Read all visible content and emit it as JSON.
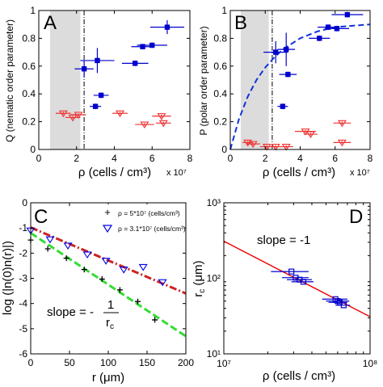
{
  "chart_data": [
    {
      "panel": "A",
      "type": "scatter",
      "xlabel": "ρ (cells / cm³)",
      "x_multiplier": "x 10⁷",
      "ylabel": "Q (nematic order parameter)",
      "xlim": [
        0,
        8
      ],
      "ylim": [
        0,
        1
      ],
      "xticks": [
        0,
        2,
        4,
        6,
        8
      ],
      "yticks": [
        0,
        0.2,
        0.4,
        0.6,
        0.8,
        1
      ],
      "shaded_band_x": [
        0.6,
        2.2
      ],
      "vertical_line_x": 2.4,
      "series": [
        {
          "color": "#0000cc",
          "marker": "square-filled",
          "points": [
            {
              "x": 2.4,
              "y": 0.58,
              "xerr": 0.5,
              "yerr": 0.06
            },
            {
              "x": 3.1,
              "y": 0.64,
              "xerr": 0.9,
              "yerr": 0.09
            },
            {
              "x": 3.3,
              "y": 0.39,
              "xerr": 0.4,
              "yerr": 0.02
            },
            {
              "x": 3.0,
              "y": 0.31,
              "xerr": 0.3,
              "yerr": 0.02
            },
            {
              "x": 5.1,
              "y": 0.62,
              "xerr": 0.7,
              "yerr": 0.02
            },
            {
              "x": 5.5,
              "y": 0.74,
              "xerr": 0.6,
              "yerr": 0.02
            },
            {
              "x": 6.0,
              "y": 0.75,
              "xerr": 0.8,
              "yerr": 0.02
            },
            {
              "x": 6.8,
              "y": 0.88,
              "xerr": 0.9,
              "yerr": 0.05
            }
          ]
        },
        {
          "color": "#ee3333",
          "marker": "triangle-open",
          "points": [
            {
              "x": 1.3,
              "y": 0.26,
              "xerr": 0.4,
              "yerr": 0.01
            },
            {
              "x": 1.8,
              "y": 0.23,
              "xerr": 0.4,
              "yerr": 0.01
            },
            {
              "x": 2.1,
              "y": 0.25,
              "xerr": 0.4,
              "yerr": 0.01
            },
            {
              "x": 4.3,
              "y": 0.26,
              "xerr": 0.4,
              "yerr": 0.01
            },
            {
              "x": 5.6,
              "y": 0.18,
              "xerr": 0.5,
              "yerr": 0.01
            },
            {
              "x": 6.5,
              "y": 0.24,
              "xerr": 0.5,
              "yerr": 0.01
            },
            {
              "x": 6.6,
              "y": 0.19,
              "xerr": 0.4,
              "yerr": 0.01
            }
          ]
        }
      ]
    },
    {
      "panel": "B",
      "type": "scatter",
      "xlabel": "ρ (cells / cm³)",
      "x_multiplier": "x 10⁷",
      "ylabel": "P (polar order parameter)",
      "xlim": [
        0,
        8
      ],
      "ylim": [
        0,
        1
      ],
      "xticks": [
        0,
        2,
        4,
        6,
        8
      ],
      "yticks": [
        0,
        0.2,
        0.4,
        0.6,
        0.8,
        1
      ],
      "shaded_band_x": [
        0.6,
        2.2
      ],
      "vertical_line_x": 2.4,
      "fit_curve": {
        "style": "dashed",
        "color": "#1133dd",
        "points": [
          [
            0,
            0
          ],
          [
            0.5,
            0.22
          ],
          [
            1,
            0.38
          ],
          [
            1.5,
            0.5
          ],
          [
            2,
            0.59
          ],
          [
            2.5,
            0.66
          ],
          [
            3,
            0.72
          ],
          [
            4,
            0.8
          ],
          [
            5,
            0.85
          ],
          [
            6,
            0.88
          ],
          [
            7,
            0.89
          ],
          [
            8,
            0.9
          ]
        ]
      },
      "series": [
        {
          "color": "#0000cc",
          "marker": "square-filled",
          "points": [
            {
              "x": 2.6,
              "y": 0.7,
              "xerr": 0.7,
              "yerr": 0.08
            },
            {
              "x": 3.2,
              "y": 0.72,
              "xerr": 0.5,
              "yerr": 0.12
            },
            {
              "x": 3.3,
              "y": 0.54,
              "xerr": 0.5,
              "yerr": 0.02
            },
            {
              "x": 3.0,
              "y": 0.31,
              "xerr": 0.3,
              "yerr": 0.02
            },
            {
              "x": 5.1,
              "y": 0.8,
              "xerr": 0.6,
              "yerr": 0.02
            },
            {
              "x": 5.6,
              "y": 0.88,
              "xerr": 0.6,
              "yerr": 0.02
            },
            {
              "x": 6.1,
              "y": 0.87,
              "xerr": 0.7,
              "yerr": 0.02
            },
            {
              "x": 6.7,
              "y": 0.97,
              "xerr": 0.9,
              "yerr": 0.02
            }
          ]
        },
        {
          "color": "#ee3333",
          "marker": "triangle-open",
          "points": [
            {
              "x": 1.0,
              "y": 0.05,
              "xerr": 0.3,
              "yerr": 0.01
            },
            {
              "x": 1.3,
              "y": 0.04,
              "xerr": 0.4,
              "yerr": 0.01
            },
            {
              "x": 2.1,
              "y": 0.02,
              "xerr": 0.4,
              "yerr": 0.01
            },
            {
              "x": 2.6,
              "y": 0.02,
              "xerr": 0.4,
              "yerr": 0.01
            },
            {
              "x": 3.2,
              "y": 0.02,
              "xerr": 0.4,
              "yerr": 0.01
            },
            {
              "x": 4.3,
              "y": 0.13,
              "xerr": 0.6,
              "yerr": 0.01
            },
            {
              "x": 4.6,
              "y": 0.11,
              "xerr": 0.4,
              "yerr": 0.01
            },
            {
              "x": 6.4,
              "y": 0.19,
              "xerr": 0.5,
              "yerr": 0.01
            },
            {
              "x": 6.4,
              "y": 0.05,
              "xerr": 0.5,
              "yerr": 0.01
            }
          ]
        }
      ]
    },
    {
      "panel": "C",
      "type": "scatter",
      "xlabel": "r (μm)",
      "ylabel": "log (|n(0)n(r)|)",
      "xlim": [
        0,
        200
      ],
      "ylim": [
        -6,
        0
      ],
      "xticks": [
        0,
        50,
        100,
        150,
        200
      ],
      "yticks": [
        -6,
        -5,
        -4,
        -3,
        -2,
        -1,
        0
      ],
      "annotation": {
        "text": "slope = -",
        "frac_num": "1",
        "frac_den": "r",
        "frac_den_sub": "c"
      },
      "legend_position": "top-right",
      "series": [
        {
          "name": "ρ = 5*10⁷ (cells/cm³)",
          "color": "#000000",
          "marker": "plus",
          "points": [
            [
              0,
              -1.48
            ],
            [
              22,
              -1.83
            ],
            [
              46,
              -2.2
            ],
            [
              69,
              -2.65
            ],
            [
              92,
              -3.03
            ],
            [
              115,
              -3.46
            ],
            [
              138,
              -3.92
            ],
            [
              160,
              -4.65
            ]
          ],
          "fit": {
            "color": "#33dd33",
            "style": "dashed",
            "x": [
              0,
              200
            ],
            "y": [
              -1.2,
              -5.3
            ]
          }
        },
        {
          "name": "ρ = 3.1*10⁷ (cells/cm³)",
          "color": "#0000ee",
          "marker": "triangle-open",
          "points": [
            [
              0,
              -1.1
            ],
            [
              25,
              -1.45
            ],
            [
              48,
              -1.7
            ],
            [
              73,
              -2.05
            ],
            [
              97,
              -2.3
            ],
            [
              120,
              -2.65
            ],
            [
              145,
              -2.55
            ],
            [
              170,
              -3.15
            ]
          ],
          "fit": {
            "color": "#cc2222",
            "style": "dashdot",
            "x": [
              0,
              200
            ],
            "y": [
              -0.98,
              -3.6
            ]
          }
        }
      ]
    },
    {
      "panel": "D",
      "type": "scatter",
      "xlabel": "ρ (cells / cm³)",
      "ylabel": "r_c (μm)",
      "xscale": "log",
      "yscale": "log",
      "xlim": [
        10000000,
        100000000
      ],
      "ylim": [
        10,
        1000
      ],
      "xtick_labels": [
        "10⁷",
        "10⁸"
      ],
      "ytick_labels": [
        "10¹",
        "10²",
        "10³"
      ],
      "annotation": "slope = -1",
      "fit_line": {
        "color": "#ee0000",
        "slope": -1,
        "points": [
          [
            10000000,
            310
          ],
          [
            100000000,
            31
          ]
        ]
      },
      "series": [
        {
          "color": "#0000cc",
          "marker": "square-open",
          "points": [
            {
              "x": 29000000,
              "y": 123,
              "xlo": 21000000,
              "xhi": 38000000
            },
            {
              "x": 31000000,
              "y": 102,
              "xlo": 25000000,
              "xhi": 38000000
            },
            {
              "x": 33000000,
              "y": 96,
              "xlo": 27000000,
              "xhi": 40000000
            },
            {
              "x": 35000000,
              "y": 90,
              "xlo": 29000000,
              "xhi": 41000000
            },
            {
              "x": 58000000,
              "y": 53,
              "xlo": 47000000,
              "xhi": 70000000
            },
            {
              "x": 60000000,
              "y": 50,
              "xlo": 50000000,
              "xhi": 72000000
            },
            {
              "x": 62000000,
              "y": 48,
              "xlo": 52000000,
              "xhi": 70000000
            },
            {
              "x": 66000000,
              "y": 44,
              "xlo": 58000000,
              "xhi": 73000000
            }
          ]
        }
      ]
    }
  ],
  "panel_labels": {
    "A": "A",
    "B": "B",
    "C": "C",
    "D": "D"
  }
}
